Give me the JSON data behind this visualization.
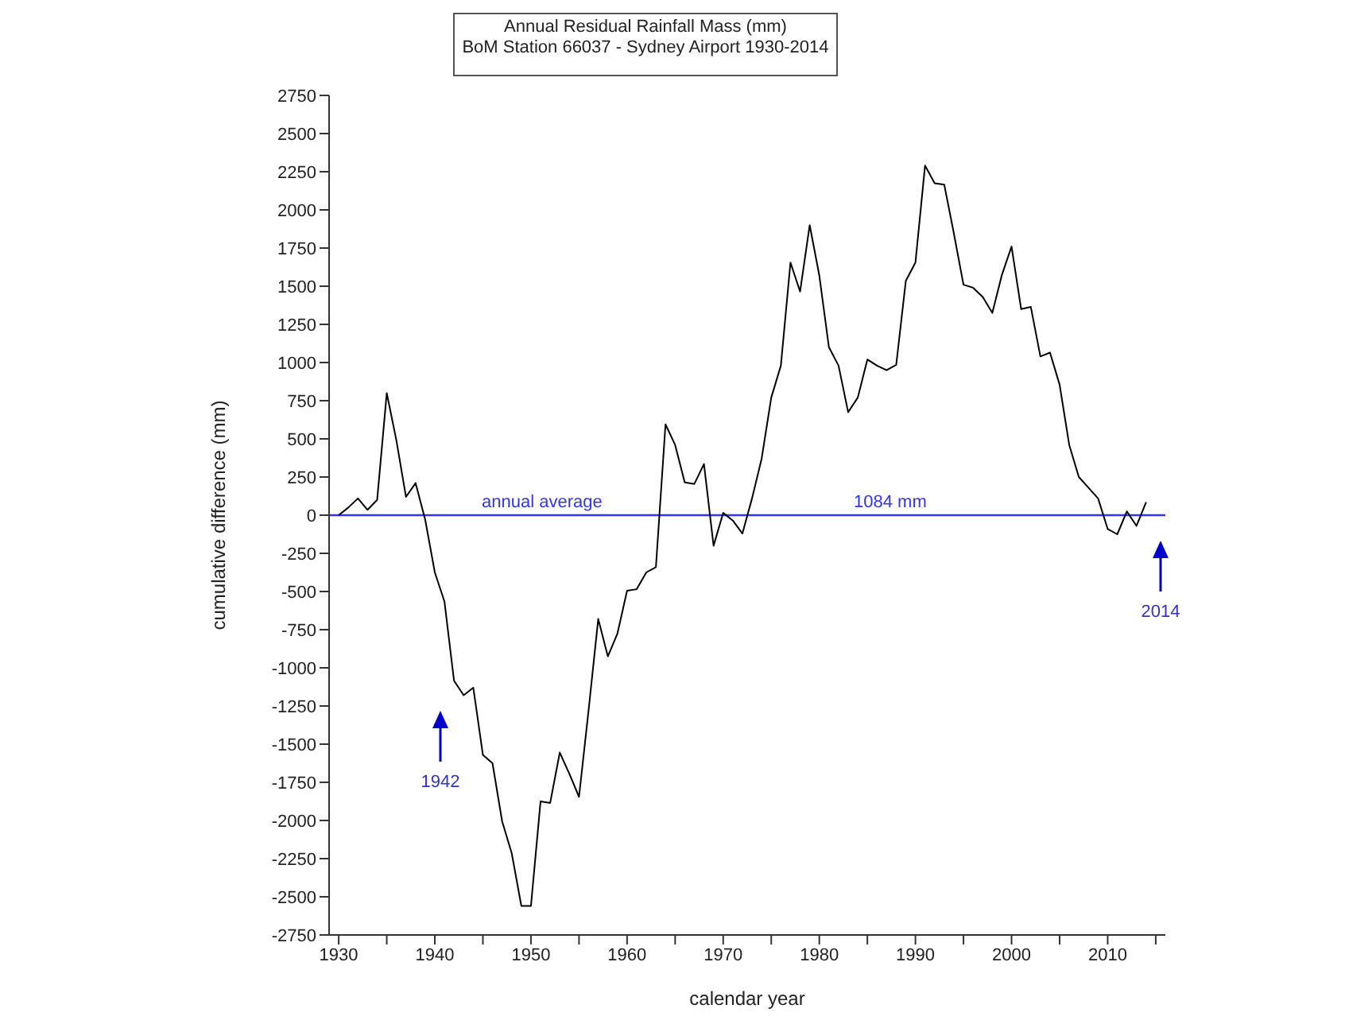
{
  "chart_data": {
    "type": "line",
    "title": "Annual Residual Rainfall Mass (mm)",
    "subtitle": "BoM Station 66037 - Sydney Airport 1930-2014",
    "xlabel": "calendar year",
    "ylabel": "cumulative difference (mm)",
    "x": [
      1930,
      1931,
      1932,
      1933,
      1934,
      1935,
      1936,
      1937,
      1938,
      1939,
      1940,
      1941,
      1942,
      1943,
      1944,
      1945,
      1946,
      1947,
      1948,
      1949,
      1950,
      1951,
      1952,
      1953,
      1954,
      1955,
      1956,
      1957,
      1958,
      1959,
      1960,
      1961,
      1962,
      1963,
      1964,
      1965,
      1966,
      1967,
      1968,
      1969,
      1970,
      1971,
      1972,
      1973,
      1974,
      1975,
      1976,
      1977,
      1978,
      1979,
      1980,
      1981,
      1982,
      1983,
      1984,
      1985,
      1986,
      1987,
      1988,
      1989,
      1990,
      1991,
      1992,
      1993,
      1994,
      1995,
      1996,
      1997,
      1998,
      1999,
      2000,
      2001,
      2002,
      2003,
      2004,
      2005,
      2006,
      2007,
      2008,
      2009,
      2010,
      2011,
      2012,
      2013,
      2014
    ],
    "series": [
      {
        "color": "#000000",
        "values": [
          0,
          50,
          110,
          35,
          100,
          800,
          490,
          120,
          210,
          -30,
          -375,
          -565,
          -1085,
          -1180,
          -1130,
          -1570,
          -1625,
          -2005,
          -2215,
          -2560,
          -2560,
          -1875,
          -1885,
          -1555,
          -1695,
          -1845,
          -1275,
          -680,
          -925,
          -775,
          -495,
          -485,
          -375,
          -340,
          595,
          460,
          215,
          205,
          335,
          -200,
          15,
          -35,
          -120,
          110,
          370,
          770,
          980,
          1655,
          1465,
          1900,
          1570,
          1100,
          980,
          675,
          770,
          1020,
          980,
          950,
          985,
          1535,
          1655,
          2290,
          2175,
          2165,
          1845,
          1510,
          1490,
          1430,
          1325,
          1575,
          1760,
          1350,
          1365,
          1040,
          1065,
          855,
          460,
          250,
          180,
          110,
          -90,
          -125,
          25,
          -70,
          85
        ]
      }
    ],
    "xlim": [
      1929,
      2016
    ],
    "xticks": [
      1930,
      {
        "value": 1935,
        "label": null
      },
      1940,
      {
        "value": 1945,
        "label": null
      },
      1950,
      {
        "value": 1955,
        "label": null
      },
      1960,
      {
        "value": 1965,
        "label": null
      },
      1970,
      {
        "value": 1975,
        "label": null
      },
      1980,
      {
        "value": 1985,
        "label": null
      },
      1990,
      {
        "value": 1995,
        "label": null
      },
      2000,
      {
        "value": 2005,
        "label": null
      },
      2010,
      {
        "value": 2015,
        "label": null
      }
    ],
    "ylim": [
      -2750,
      2750
    ],
    "yticks": [
      -2750,
      -2500,
      -2250,
      -2000,
      -1750,
      -1500,
      -1250,
      -1000,
      -750,
      -500,
      -250,
      0,
      250,
      500,
      750,
      1000,
      1250,
      1500,
      1750,
      2000,
      2250,
      2500,
      2750
    ],
    "grid": false,
    "marker": "none",
    "line_style": "solid",
    "ref_lines": [
      {
        "axis": "y",
        "value": 0,
        "label": "annual average",
        "color": "#3333ff"
      }
    ],
    "annotations": [
      "1084 mm",
      "1942",
      "2014"
    ]
  }
}
